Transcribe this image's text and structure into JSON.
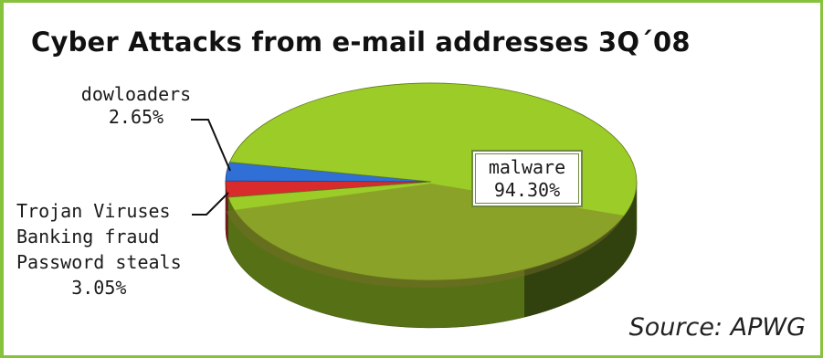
{
  "chart_data": {
    "type": "pie",
    "title": "Cyber Attacks from e-mail addresses 3Q´08",
    "source": "Source: APWG",
    "slices": [
      {
        "label": "malware",
        "value": 94.3,
        "value_label": "94.30%",
        "color": "#9ccc28"
      },
      {
        "label": "dowloaders",
        "value": 2.65,
        "value_label": "2.65%",
        "color": "#d92b2b"
      },
      {
        "label_lines": [
          "Trojan Viruses",
          "Banking fraud",
          "Password steals"
        ],
        "value": 3.05,
        "value_label": "3.05%",
        "color": "#2f6fd6"
      }
    ]
  }
}
